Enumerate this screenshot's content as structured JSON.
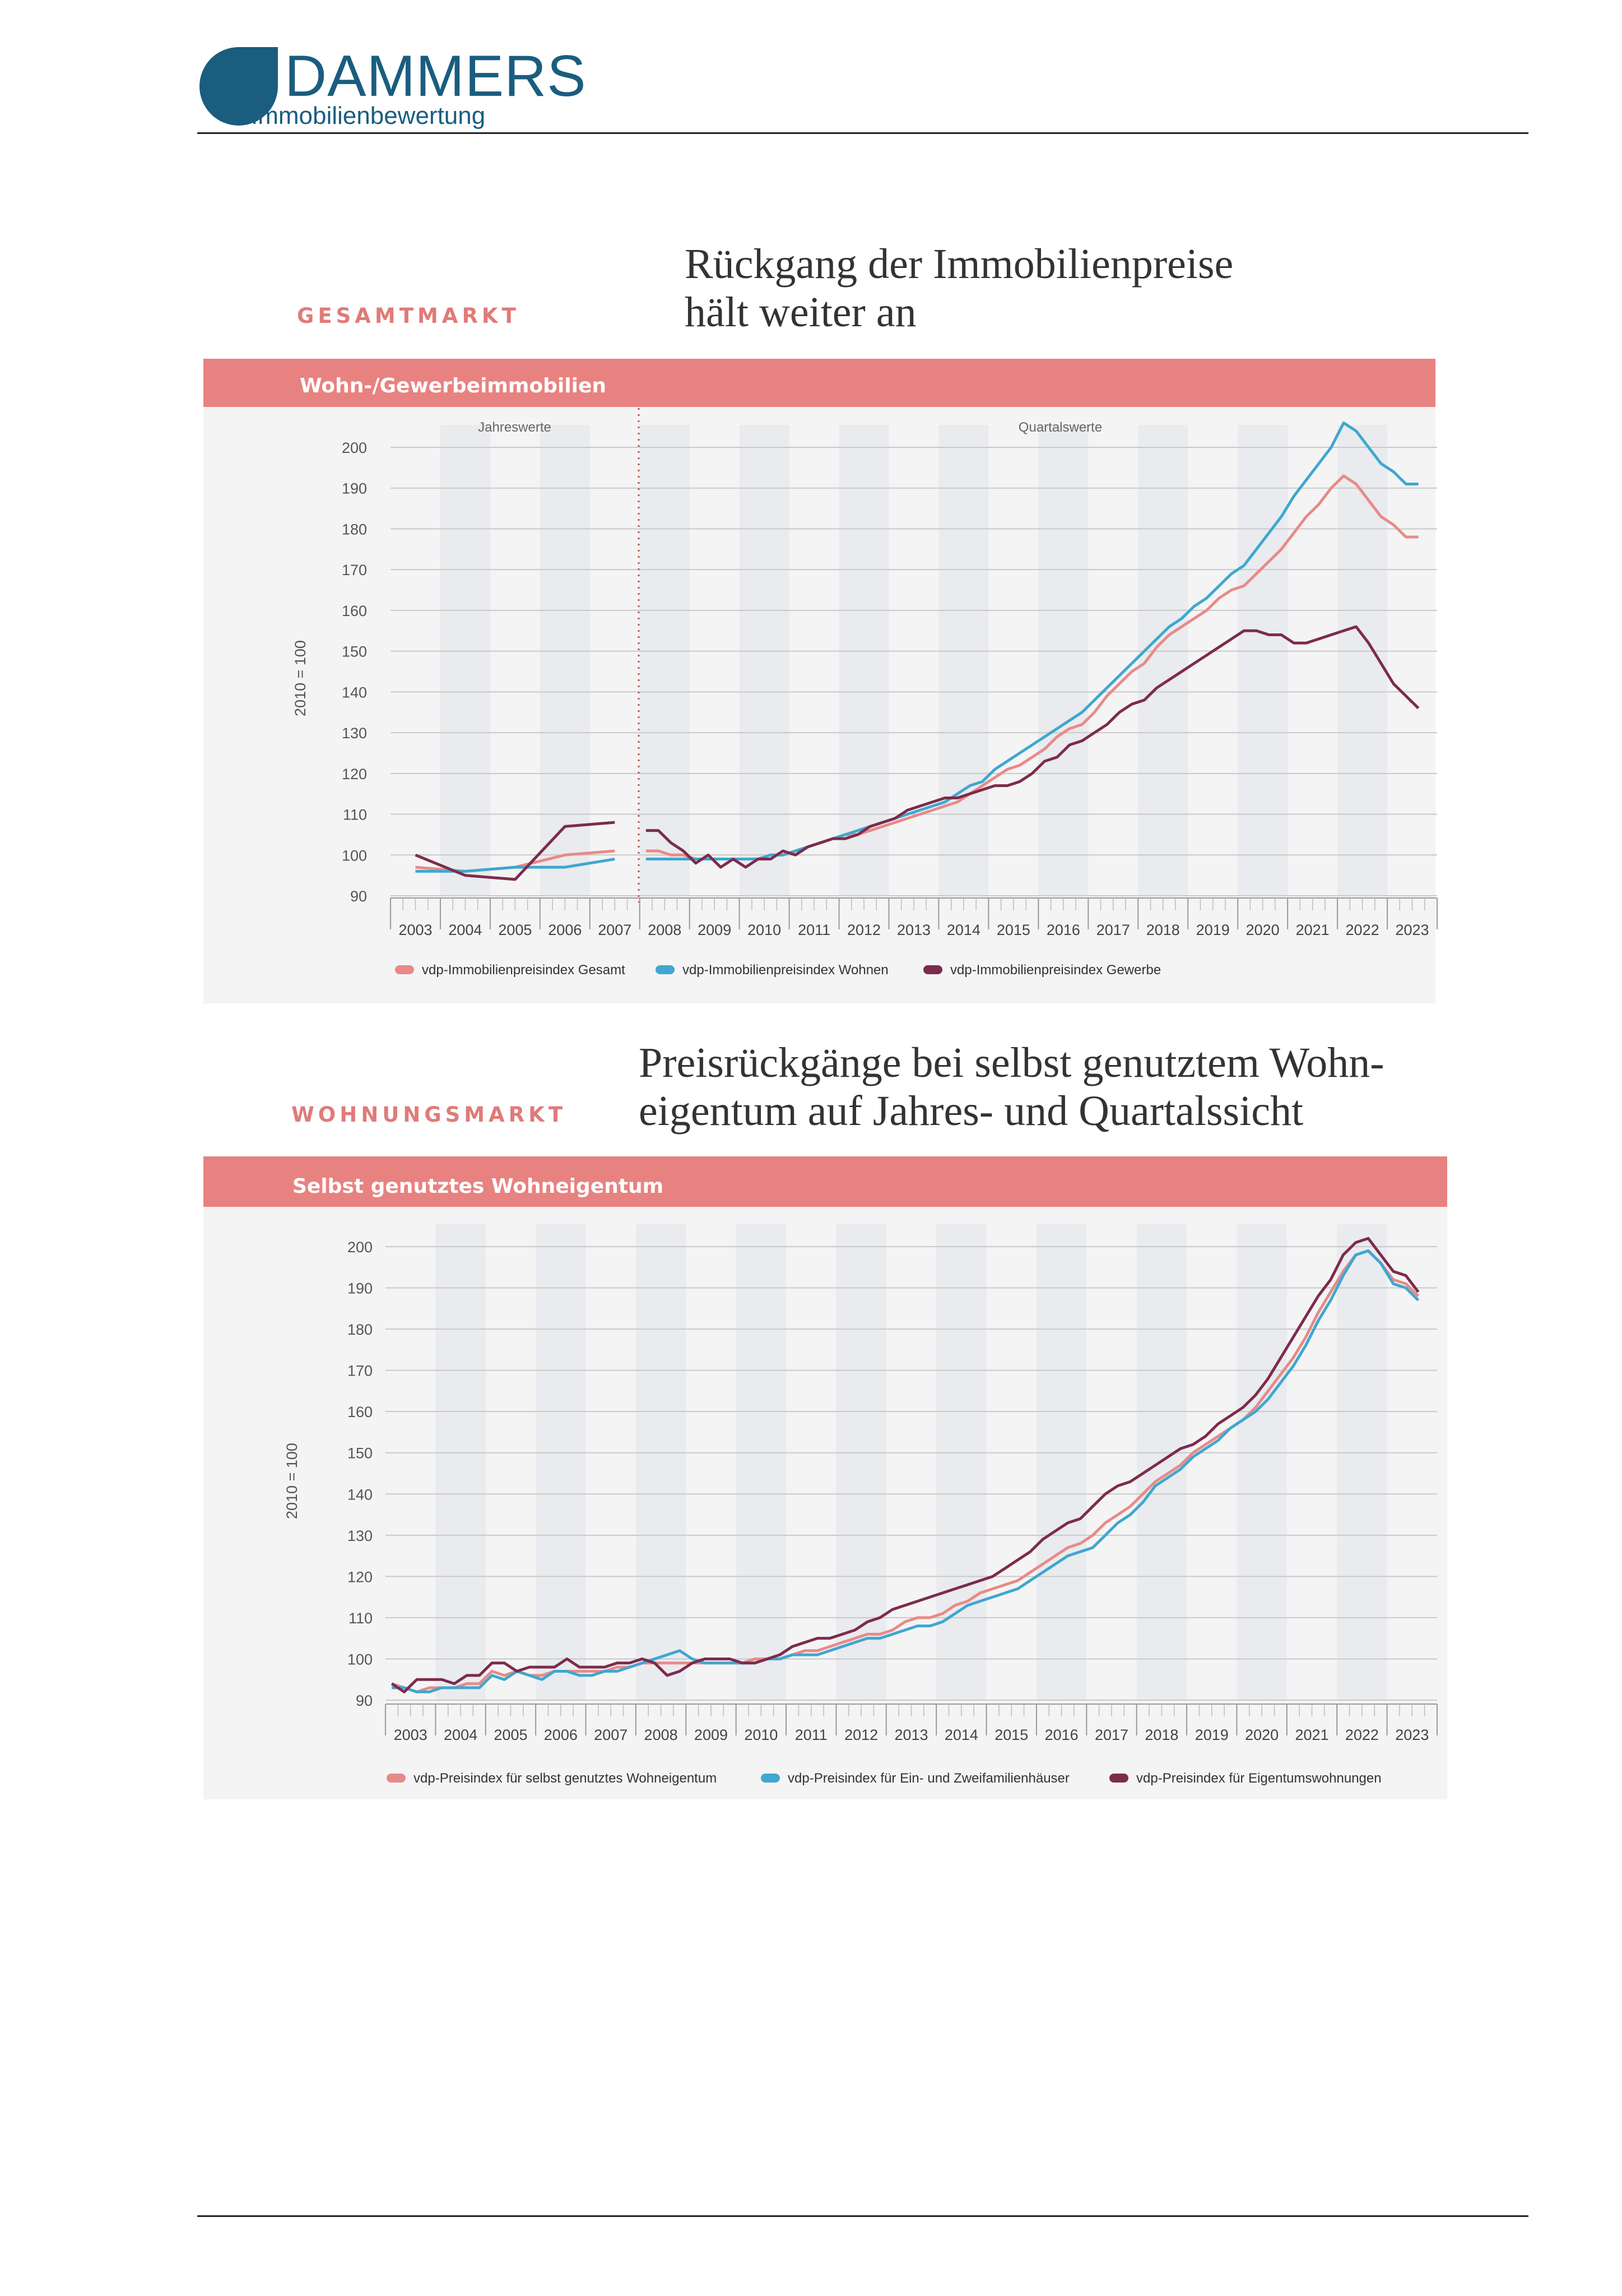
{
  "logo": {
    "name": "DAMMERS",
    "subtitle": "Immobilienbewertung"
  },
  "colors": {
    "brand_blue": "#1a5d7f",
    "accent_salmon": "#e07b79",
    "line_blue": "#3fa7d0",
    "line_plum": "#7d2b4c",
    "line_salmon": "#e88a88",
    "header_band": "#e88280"
  },
  "section1": {
    "label": "GESAMTMARKT",
    "headline": "Rückgang der Immobilienpreise\nhält weiter an"
  },
  "section2": {
    "label": "WOHNUNGSMARKT",
    "headline": "Preisrückgänge bei selbst genutztem Wohn-\neigentum auf Jahres- und Quartalssicht"
  },
  "chart_data": [
    {
      "type": "line",
      "title": "Wohn-/Gewerbeimmobilien",
      "ylabel": "2010 = 100",
      "ylim": [
        90,
        200
      ],
      "yticks": [
        90,
        100,
        110,
        120,
        130,
        140,
        150,
        160,
        170,
        180,
        190,
        200
      ],
      "xticks": [
        "2003",
        "2004",
        "2005",
        "2006",
        "2007",
        "2008",
        "2009",
        "2010",
        "2011",
        "2012",
        "2013",
        "2014",
        "2015",
        "2016",
        "2017",
        "2018",
        "2019",
        "2020",
        "2021",
        "2022",
        "2023"
      ],
      "period_labels": {
        "annual": "Jahreswerte",
        "quarterly": "Quartalswerte"
      },
      "annual_x": [
        2003,
        2004,
        2005,
        2006,
        2007
      ],
      "quarterly_x": [
        "2008 Q1",
        "2008 Q2",
        "2008 Q3",
        "2008 Q4",
        "2009 Q1",
        "2009 Q2",
        "2009 Q3",
        "2009 Q4",
        "2010 Q1",
        "2010 Q2",
        "2010 Q3",
        "2010 Q4",
        "2011 Q1",
        "2011 Q2",
        "2011 Q3",
        "2011 Q4",
        "2012 Q1",
        "2012 Q2",
        "2012 Q3",
        "2012 Q4",
        "2013 Q1",
        "2013 Q2",
        "2013 Q3",
        "2013 Q4",
        "2014 Q1",
        "2014 Q2",
        "2014 Q3",
        "2014 Q4",
        "2015 Q1",
        "2015 Q2",
        "2015 Q3",
        "2015 Q4",
        "2016 Q1",
        "2016 Q2",
        "2016 Q3",
        "2016 Q4",
        "2017 Q1",
        "2017 Q2",
        "2017 Q3",
        "2017 Q4",
        "2018 Q1",
        "2018 Q2",
        "2018 Q3",
        "2018 Q4",
        "2019 Q1",
        "2019 Q2",
        "2019 Q3",
        "2019 Q4",
        "2020 Q1",
        "2020 Q2",
        "2020 Q3",
        "2020 Q4",
        "2021 Q1",
        "2021 Q2",
        "2021 Q3",
        "2021 Q4",
        "2022 Q1",
        "2022 Q2",
        "2022 Q3",
        "2022 Q4",
        "2023 Q1",
        "2023 Q2",
        "2023 Q3"
      ],
      "series": [
        {
          "name": "vdp-Immobilienpreisindex Gesamt",
          "color": "#e88a88",
          "annual": [
            97,
            96,
            97,
            100,
            101
          ],
          "quarterly": [
            101,
            101,
            100,
            100,
            99,
            99,
            99,
            99,
            99,
            99,
            100,
            100,
            101,
            102,
            103,
            104,
            105,
            105,
            106,
            107,
            108,
            109,
            110,
            111,
            112,
            113,
            115,
            117,
            119,
            121,
            122,
            124,
            126,
            129,
            131,
            132,
            135,
            139,
            142,
            145,
            147,
            151,
            154,
            156,
            158,
            160,
            163,
            165,
            166,
            169,
            172,
            175,
            179,
            183,
            186,
            190,
            193,
            191,
            187,
            183,
            181,
            178,
            178
          ]
        },
        {
          "name": "vdp-Immobilienpreisindex Wohnen",
          "color": "#3fa7d0",
          "annual": [
            96,
            96,
            97,
            97,
            99
          ],
          "quarterly": [
            99,
            99,
            99,
            99,
            99,
            99,
            99,
            99,
            99,
            99,
            100,
            100,
            101,
            102,
            103,
            104,
            105,
            106,
            107,
            108,
            109,
            110,
            111,
            112,
            113,
            115,
            117,
            118,
            121,
            123,
            125,
            127,
            129,
            131,
            133,
            135,
            138,
            141,
            144,
            147,
            150,
            153,
            156,
            158,
            161,
            163,
            166,
            169,
            171,
            175,
            179,
            183,
            188,
            192,
            196,
            200,
            206,
            204,
            200,
            196,
            194,
            191,
            191
          ]
        },
        {
          "name": "vdp-Immobilienpreisindex Gewerbe",
          "color": "#7d2b4c",
          "annual": [
            100,
            95,
            94,
            107,
            108
          ],
          "quarterly": [
            106,
            106,
            103,
            101,
            98,
            100,
            97,
            99,
            97,
            99,
            99,
            101,
            100,
            102,
            103,
            104,
            104,
            105,
            107,
            108,
            109,
            111,
            112,
            113,
            114,
            114,
            115,
            116,
            117,
            117,
            118,
            120,
            123,
            124,
            127,
            128,
            130,
            132,
            135,
            137,
            138,
            141,
            143,
            145,
            147,
            149,
            151,
            153,
            155,
            155,
            154,
            154,
            152,
            152,
            153,
            154,
            155,
            156,
            152,
            147,
            142,
            139,
            136
          ]
        }
      ],
      "legend": [
        "vdp-Immobilienpreisindex Gesamt",
        "vdp-Immobilienpreisindex Wohnen",
        "vdp-Immobilienpreisindex Gewerbe"
      ],
      "legend_position": "bottom",
      "grid": true
    },
    {
      "type": "line",
      "title": "Selbst genutztes Wohneigentum",
      "ylabel": "2010 = 100",
      "ylim": [
        90,
        200
      ],
      "yticks": [
        90,
        100,
        110,
        120,
        130,
        140,
        150,
        160,
        170,
        180,
        190,
        200
      ],
      "xticks": [
        "2003",
        "2004",
        "2005",
        "2006",
        "2007",
        "2008",
        "2009",
        "2010",
        "2011",
        "2012",
        "2013",
        "2014",
        "2015",
        "2016",
        "2017",
        "2018",
        "2019",
        "2020",
        "2021",
        "2022",
        "2023"
      ],
      "x": [
        "2003 Q1",
        "2003 Q2",
        "2003 Q3",
        "2003 Q4",
        "2004 Q1",
        "2004 Q2",
        "2004 Q3",
        "2004 Q4",
        "2005 Q1",
        "2005 Q2",
        "2005 Q3",
        "2005 Q4",
        "2006 Q1",
        "2006 Q2",
        "2006 Q3",
        "2006 Q4",
        "2007 Q1",
        "2007 Q2",
        "2007 Q3",
        "2007 Q4",
        "2008 Q1",
        "2008 Q2",
        "2008 Q3",
        "2008 Q4",
        "2009 Q1",
        "2009 Q2",
        "2009 Q3",
        "2009 Q4",
        "2010 Q1",
        "2010 Q2",
        "2010 Q3",
        "2010 Q4",
        "2011 Q1",
        "2011 Q2",
        "2011 Q3",
        "2011 Q4",
        "2012 Q1",
        "2012 Q2",
        "2012 Q3",
        "2012 Q4",
        "2013 Q1",
        "2013 Q2",
        "2013 Q3",
        "2013 Q4",
        "2014 Q1",
        "2014 Q2",
        "2014 Q3",
        "2014 Q4",
        "2015 Q1",
        "2015 Q2",
        "2015 Q3",
        "2015 Q4",
        "2016 Q1",
        "2016 Q2",
        "2016 Q3",
        "2016 Q4",
        "2017 Q1",
        "2017 Q2",
        "2017 Q3",
        "2017 Q4",
        "2018 Q1",
        "2018 Q2",
        "2018 Q3",
        "2018 Q4",
        "2019 Q1",
        "2019 Q2",
        "2019 Q3",
        "2019 Q4",
        "2020 Q1",
        "2020 Q2",
        "2020 Q3",
        "2020 Q4",
        "2021 Q1",
        "2021 Q2",
        "2021 Q3",
        "2021 Q4",
        "2022 Q1",
        "2022 Q2",
        "2022 Q3",
        "2022 Q4",
        "2023 Q1",
        "2023 Q2",
        "2023 Q3"
      ],
      "series": [
        {
          "name": "vdp-Preisindex für selbst genutztes Wohneigentum",
          "color": "#e88a88",
          "values": [
            94,
            93,
            92,
            93,
            93,
            93,
            94,
            94,
            97,
            96,
            97,
            96,
            96,
            97,
            97,
            97,
            97,
            97,
            98,
            98,
            99,
            99,
            99,
            99,
            99,
            99,
            99,
            99,
            99,
            100,
            100,
            100,
            101,
            102,
            102,
            103,
            104,
            105,
            106,
            106,
            107,
            109,
            110,
            110,
            111,
            113,
            114,
            116,
            117,
            118,
            119,
            121,
            123,
            125,
            127,
            128,
            130,
            133,
            135,
            137,
            140,
            143,
            145,
            147,
            150,
            152,
            154,
            156,
            158,
            161,
            165,
            169,
            173,
            178,
            184,
            189,
            194,
            198,
            199,
            196,
            192,
            191,
            188
          ]
        },
        {
          "name": "vdp-Preisindex für Ein- und Zweifamilienhäuser",
          "color": "#3fa7d0",
          "values": [
            93,
            93,
            92,
            92,
            93,
            93,
            93,
            93,
            96,
            95,
            97,
            96,
            95,
            97,
            97,
            96,
            96,
            97,
            97,
            98,
            99,
            100,
            101,
            102,
            100,
            99,
            99,
            99,
            99,
            99,
            100,
            100,
            101,
            101,
            101,
            102,
            103,
            104,
            105,
            105,
            106,
            107,
            108,
            108,
            109,
            111,
            113,
            114,
            115,
            116,
            117,
            119,
            121,
            123,
            125,
            126,
            127,
            130,
            133,
            135,
            138,
            142,
            144,
            146,
            149,
            151,
            153,
            156,
            158,
            160,
            163,
            167,
            171,
            176,
            182,
            187,
            193,
            198,
            199,
            196,
            191,
            190,
            187
          ]
        },
        {
          "name": "vdp-Preisindex für Eigentumswohnungen",
          "color": "#7d2b4c",
          "values": [
            94,
            92,
            95,
            95,
            95,
            94,
            96,
            96,
            99,
            99,
            97,
            98,
            98,
            98,
            100,
            98,
            98,
            98,
            99,
            99,
            100,
            99,
            96,
            97,
            99,
            100,
            100,
            100,
            99,
            99,
            100,
            101,
            103,
            104,
            105,
            105,
            106,
            107,
            109,
            110,
            112,
            113,
            114,
            115,
            116,
            117,
            118,
            119,
            120,
            122,
            124,
            126,
            129,
            131,
            133,
            134,
            137,
            140,
            142,
            143,
            145,
            147,
            149,
            151,
            152,
            154,
            157,
            159,
            161,
            164,
            168,
            173,
            178,
            183,
            188,
            192,
            198,
            201,
            202,
            198,
            194,
            193,
            189
          ]
        }
      ],
      "legend": [
        "vdp-Preisindex für selbst genutztes Wohneigentum",
        "vdp-Preisindex für Ein- und Zweifamilienhäuser",
        "vdp-Preisindex für Eigentumswohnungen"
      ],
      "legend_position": "bottom",
      "grid": true
    }
  ]
}
